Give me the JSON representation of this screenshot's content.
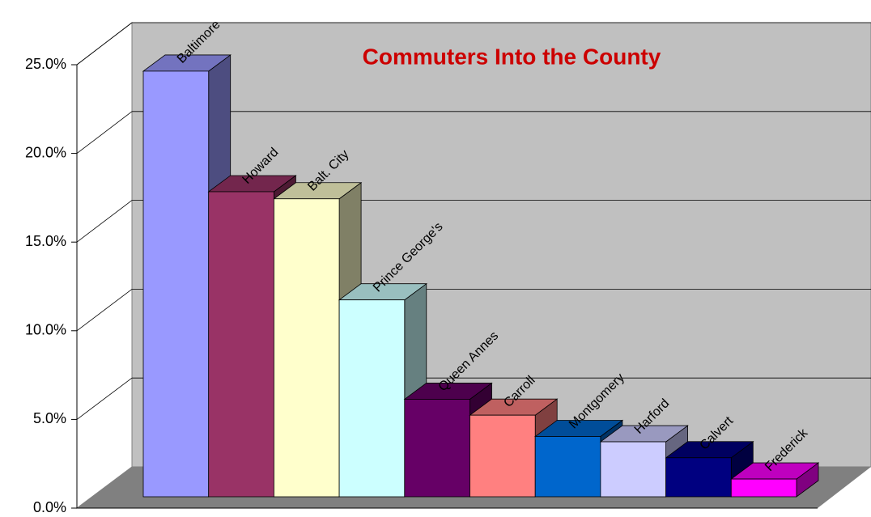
{
  "chart_data": {
    "type": "bar3d",
    "title": "Commuters Into the County",
    "categories": [
      "Baltimore",
      "Howard",
      "Balt. City",
      "Prince George's",
      "Queen Annes",
      "Carroll",
      "Montgomery",
      "Harford",
      "Calvert",
      "Frederick"
    ],
    "values": [
      24.0,
      17.2,
      16.8,
      11.1,
      5.5,
      4.6,
      3.4,
      3.1,
      2.2,
      1.0
    ],
    "colors": [
      "#9999ff",
      "#993366",
      "#ffffcc",
      "#ccffff",
      "#660066",
      "#ff8080",
      "#0066cc",
      "#ccccff",
      "#000080",
      "#ff00ff"
    ],
    "ylim": [
      0,
      25
    ],
    "yticks": [
      {
        "value": 0,
        "label": "0.0%"
      },
      {
        "value": 5,
        "label": "5.0%"
      },
      {
        "value": 10,
        "label": "10.0%"
      },
      {
        "value": 15,
        "label": "15.0%"
      },
      {
        "value": 20,
        "label": "20.0%"
      },
      {
        "value": 25,
        "label": "25.0%"
      }
    ],
    "grid": true
  }
}
